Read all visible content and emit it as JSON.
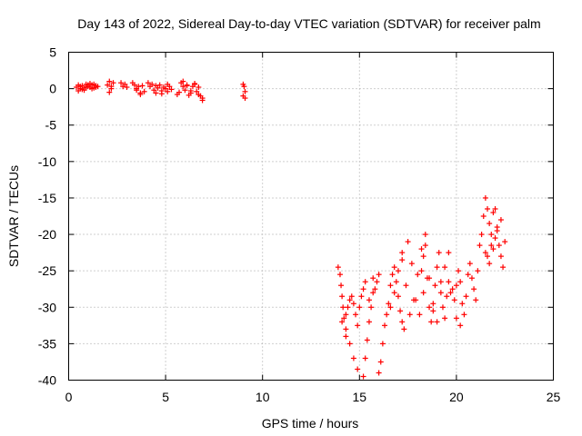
{
  "chart_data": {
    "type": "scatter",
    "title": "Day 143 of 2022, Sidereal Day-to-day VTEC variation (SDTVAR) for receiver palm",
    "xlabel": "GPS time / hours",
    "ylabel": "SDTVAR / TECUs",
    "xlim": [
      0,
      25
    ],
    "ylim": [
      -40,
      5
    ],
    "xticks": [
      "0",
      "5",
      "10",
      "15",
      "20",
      "25"
    ],
    "yticks": [
      "5",
      "0",
      "-5",
      "-10",
      "-15",
      "-20",
      "-25",
      "-30",
      "-35",
      "-40"
    ],
    "grid": true,
    "marker": "+",
    "color": "#ff0000",
    "series": [
      {
        "name": "SDTVAR",
        "x": [
          0.4,
          0.5,
          0.6,
          0.7,
          0.8,
          0.9,
          1.0,
          1.1,
          1.2,
          1.3,
          1.4,
          1.5,
          0.5,
          0.7,
          0.9,
          1.1,
          1.3,
          0.6,
          0.8,
          1.0,
          1.2,
          1.4,
          2.0,
          2.1,
          2.2,
          2.3,
          2.1,
          2.2,
          2.7,
          2.8,
          2.9,
          3.0,
          3.3,
          3.4,
          3.5,
          3.6,
          3.7,
          3.8,
          3.9,
          3.5,
          3.7,
          4.1,
          4.2,
          4.3,
          4.4,
          4.5,
          4.6,
          4.7,
          4.8,
          4.9,
          5.0,
          5.1,
          5.2,
          5.3,
          4.5,
          4.8,
          5.1,
          5.6,
          5.7,
          5.8,
          5.9,
          6.0,
          6.1,
          6.2,
          6.3,
          6.4,
          6.5,
          6.6,
          6.7,
          6.8,
          6.9,
          5.9,
          6.1,
          6.3,
          6.5,
          6.7,
          6.9,
          9.0,
          9.05,
          9.1,
          9.1,
          9.0,
          13.9,
          14.0,
          14.05,
          14.1,
          14.15,
          14.2,
          14.3,
          14.4,
          14.5,
          14.6,
          14.7,
          14.8,
          14.9,
          15.0,
          15.1,
          15.2,
          15.3,
          14.3,
          14.5,
          14.7,
          14.9,
          14.1,
          14.3,
          15.2,
          15.3,
          15.4,
          15.5,
          15.6,
          15.7,
          15.8,
          15.9,
          16.0,
          15.5,
          15.7,
          16.0,
          16.1,
          16.2,
          16.3,
          16.4,
          16.5,
          16.6,
          16.7,
          16.8,
          16.9,
          17.0,
          17.1,
          17.2,
          17.3,
          16.6,
          16.8,
          17.0,
          17.2,
          17.2,
          17.4,
          17.6,
          17.8,
          18.0,
          18.2,
          18.4,
          18.6,
          18.8,
          19.0,
          19.2,
          19.4,
          19.6,
          19.8,
          20.0,
          20.2,
          17.5,
          17.7,
          17.9,
          18.1,
          18.3,
          18.2,
          18.3,
          18.4,
          18.5,
          18.6,
          18.7,
          18.8,
          18.9,
          19.0,
          19.1,
          19.2,
          19.3,
          19.4,
          19.5,
          19.6,
          19.7,
          19.9,
          20.0,
          20.1,
          20.2,
          20.3,
          20.4,
          20.5,
          20.6,
          20.7,
          20.8,
          20.9,
          21.0,
          21.1,
          21.2,
          21.3,
          21.4,
          21.5,
          21.6,
          21.7,
          21.8,
          21.9,
          22.0,
          22.1,
          22.2,
          22.3,
          22.4,
          22.5,
          21.5,
          21.7,
          21.9,
          22.1,
          22.3,
          21.6,
          21.8,
          22.0
        ],
        "y": [
          0.2,
          0.5,
          0.0,
          0.4,
          0.1,
          0.6,
          0.3,
          0.2,
          0.5,
          0.1,
          0.4,
          0.3,
          -0.3,
          -0.1,
          0.2,
          0.7,
          0.6,
          0.3,
          -0.2,
          0.5,
          0.0,
          0.2,
          0.5,
          1.0,
          0.3,
          0.8,
          -0.5,
          0.0,
          0.8,
          0.3,
          0.6,
          0.2,
          0.8,
          0.5,
          -0.2,
          0.3,
          -0.6,
          0.4,
          -0.4,
          0.0,
          -0.8,
          0.8,
          0.3,
          0.6,
          -0.2,
          0.4,
          0.1,
          0.5,
          -0.3,
          0.2,
          0.0,
          -0.4,
          0.3,
          -0.1,
          -0.6,
          -0.7,
          0.6,
          -0.8,
          -0.5,
          0.8,
          0.3,
          -0.2,
          0.4,
          -0.9,
          -0.6,
          0.3,
          0.7,
          -0.4,
          0.2,
          -1.0,
          -1.3,
          1.0,
          0.5,
          -0.3,
          0.6,
          -0.8,
          -1.6,
          0.6,
          0.3,
          -0.4,
          -1.3,
          -1.0,
          -24.5,
          -25.5,
          -27.0,
          -28.5,
          -30.0,
          -31.5,
          -31.0,
          -30.0,
          -29.0,
          -28.5,
          -29.5,
          -31.0,
          -32.5,
          -30.0,
          -28.5,
          -27.5,
          -26.5,
          -33.0,
          -35.0,
          -37.0,
          -38.5,
          -32.0,
          -34.0,
          -39.5,
          -37.0,
          -34.5,
          -32.0,
          -30.0,
          -28.0,
          -27.5,
          -26.5,
          -25.5,
          -29.0,
          -26.0,
          -39.0,
          -37.5,
          -35.0,
          -32.5,
          -31.0,
          -29.5,
          -27.0,
          -25.5,
          -24.5,
          -26.5,
          -28.5,
          -30.5,
          -32.0,
          -33.0,
          -30.0,
          -28.0,
          -25.0,
          -22.5,
          -23.5,
          -27.0,
          -31.0,
          -29.0,
          -25.5,
          -22.0,
          -20.0,
          -26.0,
          -30.5,
          -32.0,
          -28.0,
          -24.5,
          -22.5,
          -27.5,
          -31.5,
          -32.5,
          -21.0,
          -24.0,
          -29.0,
          -31.0,
          -28.0,
          -25.0,
          -23.0,
          -21.5,
          -26.0,
          -30.0,
          -32.0,
          -29.5,
          -27.0,
          -24.5,
          -22.5,
          -26.5,
          -30.0,
          -31.5,
          -28.5,
          -26.5,
          -28.0,
          -29.0,
          -27.0,
          -25.0,
          -26.5,
          -29.5,
          -31.0,
          -28.5,
          -25.5,
          -24.0,
          -26.0,
          -27.5,
          -29.0,
          -25.0,
          -21.5,
          -20.0,
          -17.5,
          -15.0,
          -16.5,
          -18.5,
          -20.0,
          -17.0,
          -16.5,
          -19.0,
          -21.5,
          -23.0,
          -24.5,
          -21.0,
          -22.5,
          -24.0,
          -22.0,
          -19.5,
          -18.0,
          -23.0,
          -21.5,
          -20.5
        ]
      }
    ]
  }
}
